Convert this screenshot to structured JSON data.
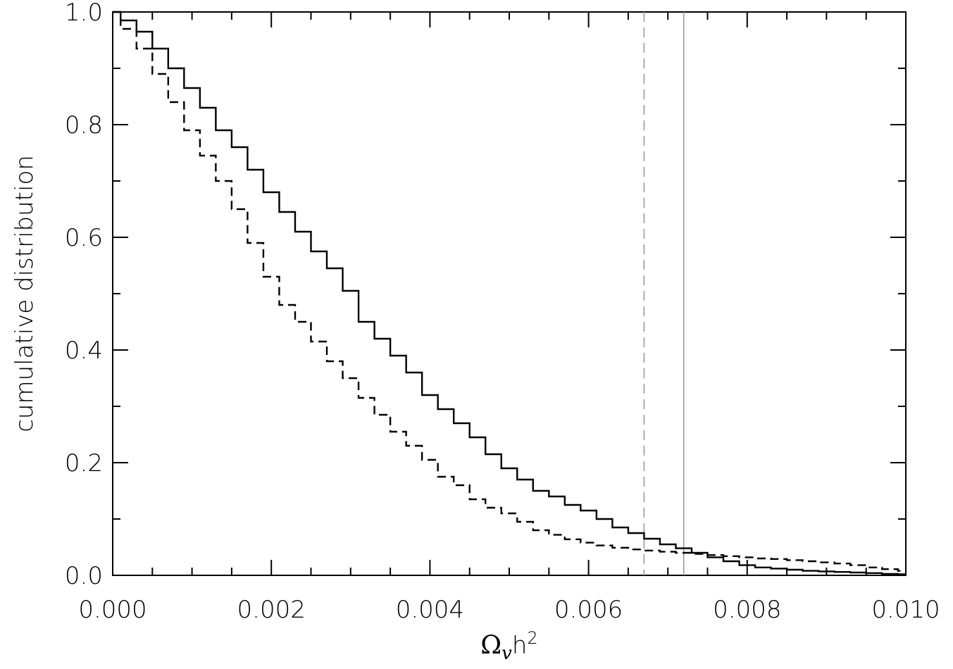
{
  "chart_data": {
    "type": "line",
    "title": "",
    "xlabel_parts": {
      "symbol": "Ω",
      "subscript": "v",
      "rest": "h",
      "superscript": "2"
    },
    "ylabel": "cumulative distribution",
    "xlim": [
      0.0,
      0.01
    ],
    "ylim": [
      0.0,
      1.0
    ],
    "x_major_ticks": [
      0.0,
      0.002,
      0.004,
      0.006,
      0.008,
      0.01
    ],
    "x_tick_labels": [
      "0.000",
      "0.002",
      "0.004",
      "0.006",
      "0.008",
      "0.010"
    ],
    "x_minor_ticks": [
      0.0005,
      0.001,
      0.0015,
      0.0025,
      0.003,
      0.0035,
      0.0045,
      0.005,
      0.0055,
      0.0065,
      0.007,
      0.0075,
      0.0085,
      0.009,
      0.0095
    ],
    "y_major_ticks": [
      0.0,
      0.2,
      0.4,
      0.6,
      0.8,
      1.0
    ],
    "y_tick_labels": [
      "0.0",
      "0.2",
      "0.4",
      "0.6",
      "0.8",
      "1.0"
    ],
    "y_minor_ticks": [
      0.1,
      0.3,
      0.5,
      0.7,
      0.9
    ],
    "grid": false,
    "legend": "none",
    "series": [
      {
        "style": "solid",
        "color": "#000000",
        "x": [
          0.0,
          0.0002,
          0.0004,
          0.0006,
          0.0008,
          0.001,
          0.0012,
          0.0014,
          0.0016,
          0.0018,
          0.002,
          0.0022,
          0.0024,
          0.0026,
          0.0028,
          0.003,
          0.0032,
          0.0034,
          0.0036,
          0.0038,
          0.004,
          0.0042,
          0.0044,
          0.0046,
          0.0048,
          0.005,
          0.0052,
          0.0054,
          0.0056,
          0.0058,
          0.006,
          0.0062,
          0.0064,
          0.0066,
          0.0068,
          0.007,
          0.0072,
          0.0074,
          0.0076,
          0.0078,
          0.008,
          0.0082,
          0.0084,
          0.0086,
          0.0088,
          0.009,
          0.0092,
          0.0094,
          0.0096,
          0.0098,
          0.01
        ],
        "y": [
          1.0,
          0.985,
          0.965,
          0.935,
          0.9,
          0.865,
          0.83,
          0.79,
          0.76,
          0.72,
          0.68,
          0.645,
          0.61,
          0.575,
          0.545,
          0.505,
          0.45,
          0.42,
          0.39,
          0.36,
          0.32,
          0.295,
          0.27,
          0.245,
          0.215,
          0.19,
          0.17,
          0.15,
          0.14,
          0.125,
          0.115,
          0.1,
          0.085,
          0.075,
          0.065,
          0.055,
          0.048,
          0.04,
          0.032,
          0.025,
          0.018,
          0.014,
          0.012,
          0.01,
          0.008,
          0.007,
          0.006,
          0.005,
          0.004,
          0.0025,
          0.002
        ]
      },
      {
        "style": "dashed",
        "color": "#000000",
        "x": [
          0.0,
          0.0002,
          0.0004,
          0.0006,
          0.0008,
          0.001,
          0.0012,
          0.0014,
          0.0016,
          0.0018,
          0.002,
          0.0022,
          0.0024,
          0.0026,
          0.0028,
          0.003,
          0.0032,
          0.0034,
          0.0036,
          0.0038,
          0.004,
          0.0042,
          0.0044,
          0.0046,
          0.0048,
          0.005,
          0.0052,
          0.0054,
          0.0056,
          0.0058,
          0.006,
          0.0062,
          0.0064,
          0.0066,
          0.0068,
          0.007,
          0.0072,
          0.0074,
          0.0076,
          0.0078,
          0.008,
          0.0082,
          0.0084,
          0.0086,
          0.0088,
          0.009,
          0.0092,
          0.0094,
          0.0096,
          0.0098,
          0.01
        ],
        "y": [
          1.0,
          0.97,
          0.935,
          0.89,
          0.84,
          0.79,
          0.745,
          0.7,
          0.65,
          0.59,
          0.53,
          0.48,
          0.45,
          0.415,
          0.38,
          0.35,
          0.315,
          0.285,
          0.255,
          0.23,
          0.205,
          0.175,
          0.16,
          0.135,
          0.12,
          0.11,
          0.095,
          0.08,
          0.072,
          0.064,
          0.058,
          0.053,
          0.049,
          0.046,
          0.044,
          0.042,
          0.04,
          0.038,
          0.036,
          0.034,
          0.032,
          0.03,
          0.029,
          0.027,
          0.025,
          0.023,
          0.021,
          0.018,
          0.014,
          0.011,
          0.008
        ]
      }
    ],
    "reference_lines": [
      {
        "x": 0.0067,
        "style": "dashed",
        "color": "#9a9a9a"
      },
      {
        "x": 0.0072,
        "style": "solid",
        "color": "#9a9a9a"
      }
    ]
  }
}
